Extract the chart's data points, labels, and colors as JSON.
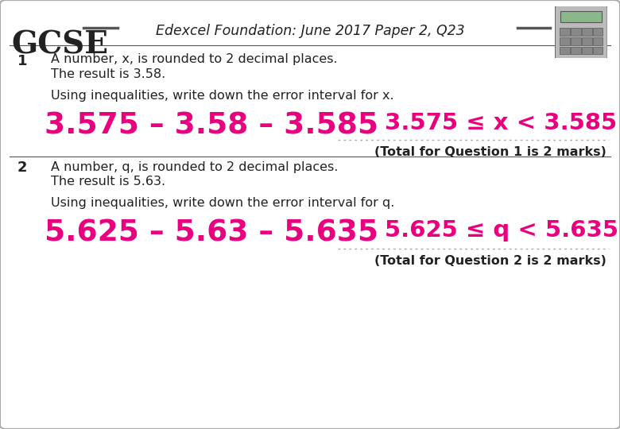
{
  "title": "Edexcel Foundation: June 2017 Paper 2, Q23",
  "gcse_text": "GCSE",
  "bg_color": "#ffffff",
  "border_color": "#aaaaaa",
  "header_line_color": "#555555",
  "pink_color": "#e8007f",
  "dark_color": "#222222",
  "q1_num": "1",
  "q1_line1": "A number, x, is rounded to 2 decimal places.",
  "q1_line2": "The result is 3.58.",
  "q1_instruction": "Using inequalities, write down the error interval for x.",
  "q1_number_line": "3.575 – 3.58 – 3.585",
  "q1_answer": "3.575 ≤ x < 3.585",
  "q1_total": "(Total for Question 1 is 2 marks)",
  "q2_num": "2",
  "q2_line1": "A number, q, is rounded to 2 decimal places.",
  "q2_line2": "The result is 5.63.",
  "q2_instruction": "Using inequalities, write down the error interval for q.",
  "q2_number_line": "5.625 – 5.63 – 5.635",
  "q2_answer": "5.625 ≤ q < 5.635",
  "q2_total": "(Total for Question 2 is 2 marks)"
}
